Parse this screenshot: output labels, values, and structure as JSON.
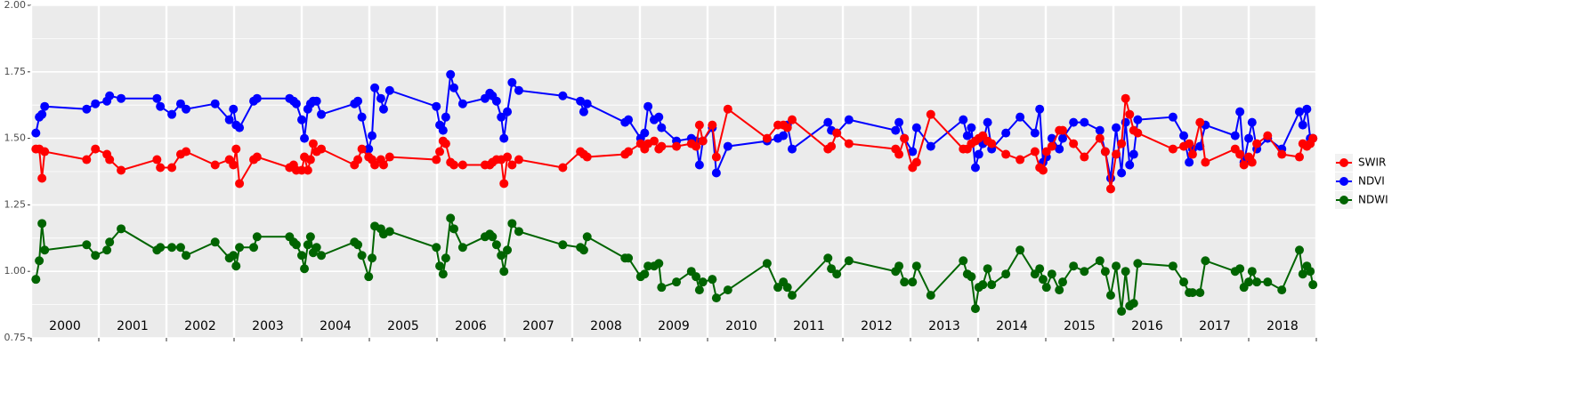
{
  "chart_data": {
    "type": "line",
    "x": [
      2000.07,
      2000.12,
      2000.16,
      2000.2,
      2000.82,
      2000.95,
      2001.12,
      2001.16,
      2001.33,
      2001.86,
      2001.91,
      2002.08,
      2002.21,
      2002.29,
      2002.72,
      2002.93,
      2002.99,
      2003.03,
      2003.08,
      2003.29,
      2003.34,
      2003.82,
      2003.88,
      2003.92,
      2004.0,
      2004.04,
      2004.09,
      2004.13,
      2004.17,
      2004.22,
      2004.29,
      2004.78,
      2004.83,
      2004.89,
      2004.99,
      2005.04,
      2005.08,
      2005.17,
      2005.21,
      2005.3,
      2005.99,
      2006.04,
      2006.09,
      2006.13,
      2006.2,
      2006.25,
      2006.38,
      2006.71,
      2006.78,
      2006.82,
      2006.88,
      2006.95,
      2006.99,
      2007.04,
      2007.11,
      2007.21,
      2007.86,
      2008.12,
      2008.17,
      2008.22,
      2008.78,
      2008.83,
      2009.01,
      2009.07,
      2009.12,
      2009.21,
      2009.28,
      2009.32,
      2009.54,
      2009.76,
      2009.83,
      2009.88,
      2009.93,
      2010.07,
      2010.13,
      2010.3,
      2010.88,
      2011.04,
      2011.12,
      2011.18,
      2011.25,
      2011.78,
      2011.83,
      2011.91,
      2012.09,
      2012.78,
      2012.83,
      2012.91,
      2013.03,
      2013.09,
      2013.3,
      2013.78,
      2013.84,
      2013.9,
      2013.96,
      2014.01,
      2014.07,
      2014.14,
      2014.2,
      2014.41,
      2014.62,
      2014.84,
      2014.91,
      2014.96,
      2015.01,
      2015.09,
      2015.2,
      2015.25,
      2015.41,
      2015.57,
      2015.8,
      2015.88,
      2015.96,
      2016.04,
      2016.12,
      2016.18,
      2016.24,
      2016.3,
      2016.36,
      2016.88,
      2017.04,
      2017.12,
      2017.17,
      2017.28,
      2017.36,
      2017.8,
      2017.87,
      2017.93,
      2018.0,
      2018.05,
      2018.12,
      2018.28,
      2018.49,
      2018.75,
      2018.8,
      2018.86,
      2018.91,
      2018.95
    ],
    "series": [
      {
        "name": "SWIR",
        "color": "#ff0000",
        "values": [
          1.46,
          1.46,
          1.35,
          1.45,
          1.42,
          1.46,
          1.44,
          1.42,
          1.38,
          1.42,
          1.39,
          1.39,
          1.44,
          1.45,
          1.4,
          1.42,
          1.4,
          1.46,
          1.33,
          1.42,
          1.43,
          1.39,
          1.4,
          1.38,
          1.38,
          1.43,
          1.38,
          1.42,
          1.48,
          1.45,
          1.46,
          1.4,
          1.42,
          1.46,
          1.43,
          1.42,
          1.4,
          1.42,
          1.4,
          1.43,
          1.42,
          1.45,
          1.49,
          1.48,
          1.41,
          1.4,
          1.4,
          1.4,
          1.4,
          1.41,
          1.42,
          1.42,
          1.33,
          1.43,
          1.4,
          1.42,
          1.39,
          1.45,
          1.44,
          1.43,
          1.44,
          1.45,
          1.48,
          1.46,
          1.48,
          1.49,
          1.46,
          1.47,
          1.47,
          1.48,
          1.47,
          1.55,
          1.49,
          1.55,
          1.43,
          1.61,
          1.5,
          1.55,
          1.55,
          1.54,
          1.57,
          1.46,
          1.47,
          1.52,
          1.48,
          1.46,
          1.44,
          1.5,
          1.39,
          1.41,
          1.59,
          1.46,
          1.46,
          1.48,
          1.49,
          1.5,
          1.51,
          1.49,
          1.48,
          1.44,
          1.42,
          1.45,
          1.39,
          1.38,
          1.45,
          1.47,
          1.53,
          1.53,
          1.48,
          1.43,
          1.5,
          1.45,
          1.31,
          1.44,
          1.48,
          1.65,
          1.59,
          1.53,
          1.52,
          1.46,
          1.47,
          1.48,
          1.44,
          1.56,
          1.41,
          1.46,
          1.44,
          1.4,
          1.43,
          1.41,
          1.48,
          1.51,
          1.44,
          1.43,
          1.48,
          1.47,
          1.48,
          1.5
        ]
      },
      {
        "name": "NDVI",
        "color": "#0000ff",
        "values": [
          1.52,
          1.58,
          1.59,
          1.62,
          1.61,
          1.63,
          1.64,
          1.66,
          1.65,
          1.65,
          1.62,
          1.59,
          1.63,
          1.61,
          1.63,
          1.57,
          1.61,
          1.55,
          1.54,
          1.64,
          1.65,
          1.65,
          1.64,
          1.63,
          1.57,
          1.5,
          1.61,
          1.63,
          1.64,
          1.64,
          1.59,
          1.63,
          1.64,
          1.58,
          1.46,
          1.51,
          1.69,
          1.65,
          1.61,
          1.68,
          1.62,
          1.55,
          1.53,
          1.58,
          1.74,
          1.69,
          1.63,
          1.65,
          1.67,
          1.66,
          1.64,
          1.58,
          1.5,
          1.6,
          1.71,
          1.68,
          1.66,
          1.64,
          1.6,
          1.63,
          1.56,
          1.57,
          1.5,
          1.52,
          1.62,
          1.57,
          1.58,
          1.54,
          1.49,
          1.5,
          1.49,
          1.4,
          1.49,
          1.54,
          1.37,
          1.47,
          1.49,
          1.5,
          1.51,
          1.55,
          1.46,
          1.56,
          1.53,
          1.52,
          1.57,
          1.53,
          1.56,
          1.5,
          1.45,
          1.54,
          1.47,
          1.57,
          1.51,
          1.54,
          1.39,
          1.44,
          1.48,
          1.56,
          1.46,
          1.52,
          1.58,
          1.52,
          1.61,
          1.41,
          1.43,
          1.5,
          1.46,
          1.5,
          1.56,
          1.56,
          1.53,
          1.45,
          1.35,
          1.54,
          1.37,
          1.56,
          1.4,
          1.44,
          1.57,
          1.58,
          1.51,
          1.41,
          1.46,
          1.47,
          1.55,
          1.51,
          1.6,
          1.41,
          1.5,
          1.56,
          1.46,
          1.5,
          1.46,
          1.6,
          1.55,
          1.61,
          1.5,
          1.5
        ]
      },
      {
        "name": "NDWI",
        "color": "#006400",
        "values": [
          0.97,
          1.04,
          1.18,
          1.08,
          1.1,
          1.06,
          1.08,
          1.11,
          1.16,
          1.08,
          1.09,
          1.09,
          1.09,
          1.06,
          1.11,
          1.05,
          1.06,
          1.02,
          1.09,
          1.09,
          1.13,
          1.13,
          1.11,
          1.1,
          1.06,
          1.01,
          1.1,
          1.13,
          1.07,
          1.09,
          1.06,
          1.11,
          1.1,
          1.06,
          0.98,
          1.05,
          1.17,
          1.16,
          1.14,
          1.15,
          1.09,
          1.02,
          0.99,
          1.05,
          1.2,
          1.16,
          1.09,
          1.13,
          1.14,
          1.13,
          1.1,
          1.06,
          1.0,
          1.08,
          1.18,
          1.15,
          1.1,
          1.09,
          1.08,
          1.13,
          1.05,
          1.05,
          0.98,
          0.99,
          1.02,
          1.02,
          1.03,
          0.94,
          0.96,
          1.0,
          0.98,
          0.93,
          0.96,
          0.97,
          0.9,
          0.93,
          1.03,
          0.94,
          0.96,
          0.94,
          0.91,
          1.05,
          1.01,
          0.99,
          1.04,
          1.0,
          1.02,
          0.96,
          0.96,
          1.02,
          0.91,
          1.04,
          0.99,
          0.98,
          0.86,
          0.94,
          0.95,
          1.01,
          0.95,
          0.99,
          1.08,
          0.99,
          1.01,
          0.97,
          0.94,
          0.99,
          0.93,
          0.96,
          1.02,
          1.0,
          1.04,
          1.0,
          0.91,
          1.02,
          0.85,
          1.0,
          0.87,
          0.88,
          1.03,
          1.02,
          0.96,
          0.92,
          0.92,
          0.92,
          1.04,
          1.0,
          1.01,
          0.94,
          0.96,
          1.0,
          0.96,
          0.96,
          0.93,
          1.08,
          0.99,
          1.02,
          1.0,
          0.95
        ]
      }
    ],
    "xlim": [
      2000,
      2019
    ],
    "xticks": [
      2000,
      2001,
      2002,
      2003,
      2004,
      2005,
      2006,
      2007,
      2008,
      2009,
      2010,
      2011,
      2012,
      2013,
      2014,
      2015,
      2016,
      2017,
      2018,
      2019
    ],
    "ylim": [
      0.75,
      2
    ],
    "yticks": [
      0.75,
      {
        "value": 1,
        "label": "1.00"
      },
      1.25,
      {
        "value": 1.5,
        "label": "1.50"
      },
      1.75,
      {
        "value": 2,
        "label": "2.00"
      }
    ],
    "annotations": [
      "2000",
      "2001",
      "2002",
      "2003",
      "2004",
      "2005",
      "2006",
      "2007",
      "2008",
      "2009",
      "2010",
      "2011",
      "2012",
      "2013",
      "2014",
      "2015",
      "2016",
      "2017",
      "2018"
    ],
    "grid": true,
    "legend": "right"
  }
}
